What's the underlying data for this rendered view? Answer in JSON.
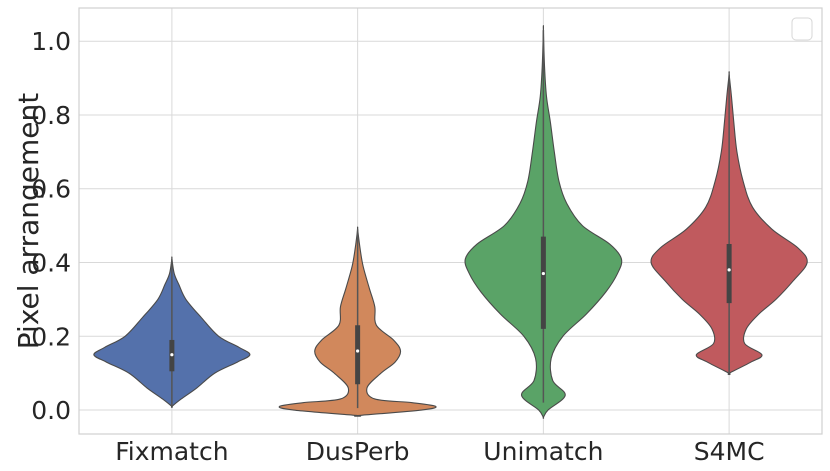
{
  "chart_data": {
    "type": "violin",
    "ylabel": "Pixel arrangement",
    "xlabel": "",
    "ylim": [
      -0.065,
      1.09
    ],
    "yticks": [
      0.0,
      0.2,
      0.4,
      0.6,
      0.8,
      1.0
    ],
    "ytick_labels": [
      "0.0",
      "0.2",
      "0.4",
      "0.6",
      "0.8",
      "1.0"
    ],
    "grid": true,
    "legend": {
      "placement": "top-right",
      "entries": []
    },
    "categories": [
      "Fixmatch",
      "DusPerb",
      "Unimatch",
      "S4MC"
    ],
    "series": [
      {
        "category": "Fixmatch",
        "color": "#5471ab",
        "stats": {
          "min": 0.01,
          "q1": 0.105,
          "median": 0.15,
          "q3": 0.19,
          "max": 0.41
        },
        "density": [
          [
            0.01,
            0.0
          ],
          [
            0.03,
            0.12
          ],
          [
            0.06,
            0.32
          ],
          [
            0.1,
            0.55
          ],
          [
            0.13,
            0.84
          ],
          [
            0.15,
            1.0
          ],
          [
            0.17,
            0.86
          ],
          [
            0.2,
            0.6
          ],
          [
            0.25,
            0.38
          ],
          [
            0.3,
            0.18
          ],
          [
            0.34,
            0.09
          ],
          [
            0.37,
            0.03
          ],
          [
            0.41,
            0.0
          ]
        ]
      },
      {
        "category": "DusPerb",
        "color": "#d1885c",
        "stats": {
          "min": 0.005,
          "q1": 0.07,
          "median": 0.16,
          "q3": 0.23,
          "max": 0.49
        },
        "density": [
          [
            -0.015,
            0.0
          ],
          [
            0.0,
            0.82
          ],
          [
            0.01,
            1.0
          ],
          [
            0.02,
            0.7
          ],
          [
            0.03,
            0.22
          ],
          [
            0.06,
            0.12
          ],
          [
            0.1,
            0.3
          ],
          [
            0.13,
            0.48
          ],
          [
            0.16,
            0.55
          ],
          [
            0.19,
            0.46
          ],
          [
            0.23,
            0.24
          ],
          [
            0.28,
            0.22
          ],
          [
            0.33,
            0.15
          ],
          [
            0.39,
            0.07
          ],
          [
            0.44,
            0.03
          ],
          [
            0.49,
            0.0
          ]
        ]
      },
      {
        "category": "Unimatch",
        "color": "#5aa367",
        "stats": {
          "min": 0.02,
          "q1": 0.22,
          "median": 0.37,
          "q3": 0.47,
          "max": 1.03
        },
        "density": [
          [
            -0.02,
            0.0
          ],
          [
            0.0,
            0.06
          ],
          [
            0.04,
            0.28
          ],
          [
            0.08,
            0.12
          ],
          [
            0.14,
            0.1
          ],
          [
            0.2,
            0.25
          ],
          [
            0.26,
            0.55
          ],
          [
            0.32,
            0.8
          ],
          [
            0.37,
            0.95
          ],
          [
            0.41,
            1.0
          ],
          [
            0.45,
            0.85
          ],
          [
            0.5,
            0.5
          ],
          [
            0.56,
            0.3
          ],
          [
            0.62,
            0.2
          ],
          [
            0.7,
            0.14
          ],
          [
            0.78,
            0.09
          ],
          [
            0.85,
            0.04
          ],
          [
            0.93,
            0.015
          ],
          [
            1.03,
            0.0
          ]
        ]
      },
      {
        "category": "S4MC",
        "color": "#c05a5e",
        "stats": {
          "min": 0.1,
          "q1": 0.29,
          "median": 0.38,
          "q3": 0.45,
          "max": 0.91
        },
        "density": [
          [
            0.1,
            0.0
          ],
          [
            0.13,
            0.28
          ],
          [
            0.15,
            0.42
          ],
          [
            0.18,
            0.2
          ],
          [
            0.22,
            0.22
          ],
          [
            0.26,
            0.38
          ],
          [
            0.3,
            0.6
          ],
          [
            0.35,
            0.82
          ],
          [
            0.4,
            1.0
          ],
          [
            0.44,
            0.88
          ],
          [
            0.49,
            0.55
          ],
          [
            0.55,
            0.3
          ],
          [
            0.62,
            0.18
          ],
          [
            0.7,
            0.1
          ],
          [
            0.78,
            0.06
          ],
          [
            0.85,
            0.03
          ],
          [
            0.91,
            0.0
          ]
        ]
      }
    ]
  }
}
